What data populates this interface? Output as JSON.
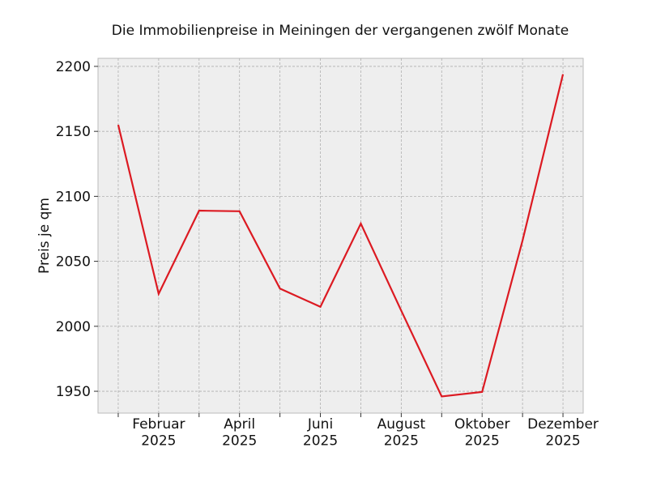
{
  "chart_data": {
    "type": "line",
    "title": "Die Immobilienpreise in Meiningen der vergangenen zwölf Monate",
    "y_label": "Preis je qm",
    "categories": [
      null,
      "Februar\n2025",
      null,
      "April\n2025",
      null,
      "Juni\n2025",
      null,
      "August\n2025",
      null,
      "Oktober\n2025",
      null,
      "Dezember\n2025"
    ],
    "series": [
      {
        "name": "Preis je qm",
        "color": "#dc1a22",
        "values": [
          2155,
          2025,
          2089,
          2088.5,
          2029,
          2015,
          2079,
          2012,
          1946,
          1949.5,
          2066,
          2194
        ]
      }
    ],
    "ylim": [
      1933.2,
      2206.2
    ],
    "yticks": [
      1950,
      2000,
      2050,
      2100,
      2150,
      2200
    ],
    "grid": true
  }
}
